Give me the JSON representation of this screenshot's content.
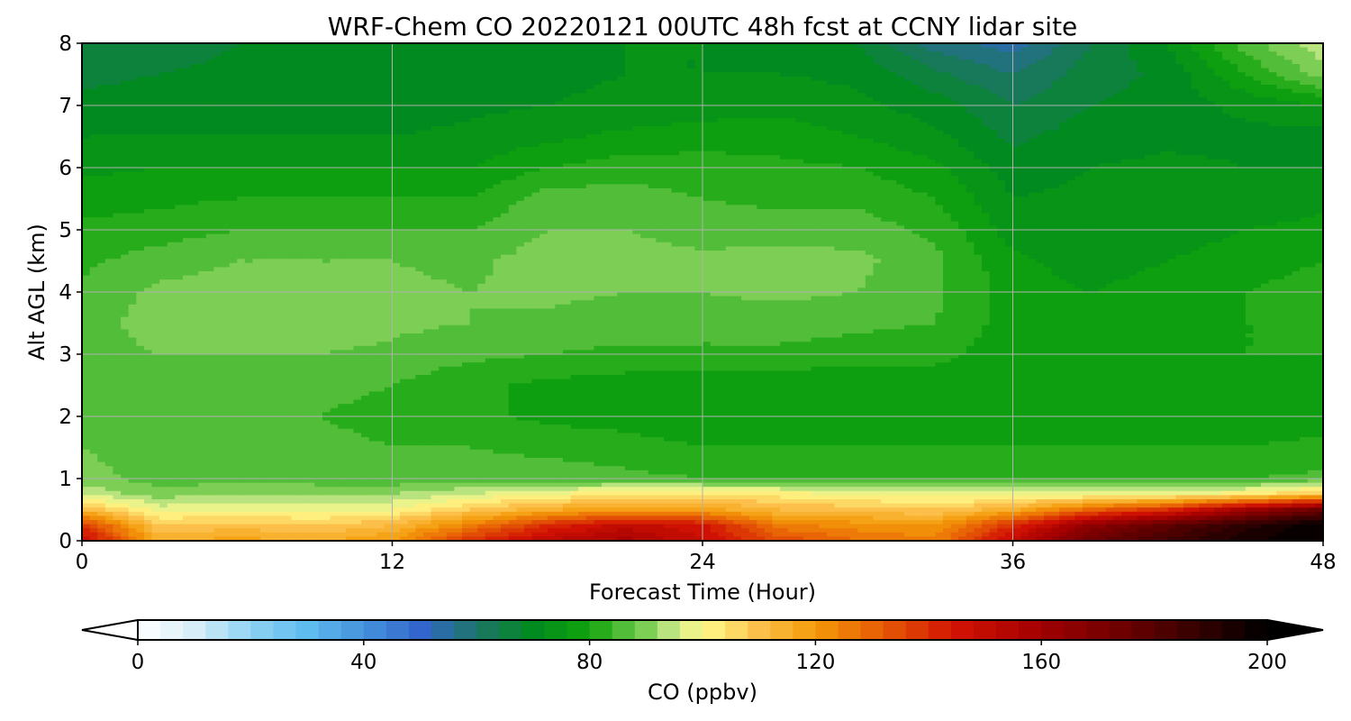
{
  "chart_data": {
    "type": "heatmap",
    "subtype": "filled-contour",
    "title": "WRF-Chem CO  20220121 00UTC 48h fcst at CCNY lidar site",
    "xlabel": "Forecast Time (Hour)",
    "ylabel": "Alt AGL (km)",
    "xlim": [
      0,
      48
    ],
    "ylim": [
      0,
      8
    ],
    "x_ticks": [
      "0",
      "12",
      "24",
      "36",
      "48"
    ],
    "y_ticks": [
      "0",
      "1",
      "2",
      "3",
      "4",
      "5",
      "6",
      "7",
      "8"
    ],
    "grid": true,
    "z_unit": "ppbv",
    "x_nodes": [
      0,
      3,
      6,
      9,
      12,
      15,
      18,
      21,
      24,
      27,
      30,
      33,
      36,
      39,
      42,
      45,
      48
    ],
    "y_nodes": [
      0,
      0.25,
      0.5,
      0.75,
      1,
      1.5,
      2,
      2.5,
      3,
      3.5,
      4,
      4.5,
      5,
      5.5,
      6,
      6.5,
      7,
      7.5,
      8
    ],
    "values": [
      [
        150,
        115,
        118,
        115,
        120,
        140,
        152,
        158,
        148,
        135,
        128,
        125,
        150,
        175,
        185,
        195,
        200
      ],
      [
        138,
        108,
        110,
        108,
        112,
        125,
        140,
        150,
        145,
        125,
        122,
        120,
        140,
        165,
        178,
        190,
        200
      ],
      [
        112,
        98,
        100,
        98,
        100,
        108,
        115,
        120,
        118,
        112,
        110,
        108,
        115,
        130,
        140,
        160,
        175
      ],
      [
        95,
        90,
        92,
        91,
        92,
        96,
        100,
        103,
        104,
        102,
        100,
        98,
        97,
        98,
        99,
        102,
        110
      ],
      [
        90,
        86,
        86,
        86,
        85,
        86,
        86,
        85,
        84,
        84,
        84,
        83,
        83,
        83,
        83,
        84,
        85
      ],
      [
        88,
        85,
        86,
        85,
        84,
        84,
        83,
        82,
        80,
        80,
        80,
        80,
        80,
        80,
        80,
        80,
        81
      ],
      [
        86,
        85,
        85,
        84,
        83,
        81,
        79,
        78,
        77,
        77,
        77,
        77,
        78,
        78,
        78,
        78,
        78
      ],
      [
        85,
        86,
        86,
        85,
        84,
        81,
        79,
        78,
        77,
        77,
        77,
        78,
        78,
        78,
        79,
        79,
        80
      ],
      [
        86,
        88,
        88,
        88,
        87,
        85,
        84,
        83,
        83,
        83,
        82,
        81,
        78,
        78,
        79,
        80,
        80
      ],
      [
        86,
        90,
        90,
        91,
        89,
        88,
        87,
        86,
        86,
        86,
        85,
        84,
        78,
        77,
        78,
        80,
        80
      ],
      [
        85,
        89,
        90,
        90,
        89,
        88,
        89,
        88,
        88,
        89,
        88,
        85,
        78,
        76,
        78,
        80,
        82
      ],
      [
        83,
        86,
        88,
        88,
        88,
        87,
        90,
        90,
        89,
        90,
        89,
        85,
        77,
        74,
        76,
        78,
        80
      ],
      [
        81,
        82,
        84,
        84,
        84,
        84,
        88,
        88,
        86,
        86,
        86,
        83,
        74,
        73,
        74,
        76,
        77
      ],
      [
        78,
        79,
        80,
        80,
        80,
        80,
        86,
        86,
        84,
        83,
        83,
        80,
        72,
        73,
        74,
        74,
        75
      ],
      [
        75,
        76,
        76,
        76,
        76,
        76,
        80,
        82,
        82,
        81,
        80,
        77,
        70,
        72,
        73,
        72,
        72
      ],
      [
        72,
        72,
        72,
        72,
        72,
        73,
        75,
        77,
        78,
        78,
        76,
        73,
        67,
        70,
        71,
        71,
        70
      ],
      [
        69,
        70,
        70,
        70,
        70,
        71,
        72,
        73,
        74,
        75,
        73,
        70,
        64,
        68,
        70,
        73,
        76
      ],
      [
        67,
        68,
        69,
        69,
        69,
        70,
        71,
        72,
        72,
        72,
        71,
        65,
        60,
        66,
        69,
        80,
        90
      ],
      [
        65,
        66,
        68,
        68,
        68,
        70,
        71,
        72,
        72,
        71,
        68,
        58,
        54,
        64,
        72,
        86,
        95
      ]
    ],
    "colorbar": {
      "label": "CO  (ppbv)",
      "min": 0,
      "max": 200,
      "tick_labels": [
        "0",
        "40",
        "80",
        "120",
        "160",
        "200"
      ],
      "extend": "both",
      "color_stops": [
        {
          "value": 0,
          "color": "#ffffff"
        },
        {
          "value": 10,
          "color": "#d7eef8"
        },
        {
          "value": 20,
          "color": "#8fd2f3"
        },
        {
          "value": 30,
          "color": "#5fbcee"
        },
        {
          "value": 40,
          "color": "#4592dc"
        },
        {
          "value": 50,
          "color": "#3366cc"
        },
        {
          "value": 60,
          "color": "#1d7568"
        },
        {
          "value": 70,
          "color": "#008a1f"
        },
        {
          "value": 80,
          "color": "#12a40c"
        },
        {
          "value": 90,
          "color": "#7cce55"
        },
        {
          "value": 95,
          "color": "#c8e888"
        },
        {
          "value": 100,
          "color": "#fffb8c"
        },
        {
          "value": 110,
          "color": "#fcc04a"
        },
        {
          "value": 120,
          "color": "#f59a0a"
        },
        {
          "value": 130,
          "color": "#e86405"
        },
        {
          "value": 145,
          "color": "#d21203"
        },
        {
          "value": 160,
          "color": "#a00000"
        },
        {
          "value": 175,
          "color": "#6b0000"
        },
        {
          "value": 190,
          "color": "#2a0000"
        },
        {
          "value": 200,
          "color": "#000000"
        }
      ],
      "n_levels": 50
    }
  }
}
